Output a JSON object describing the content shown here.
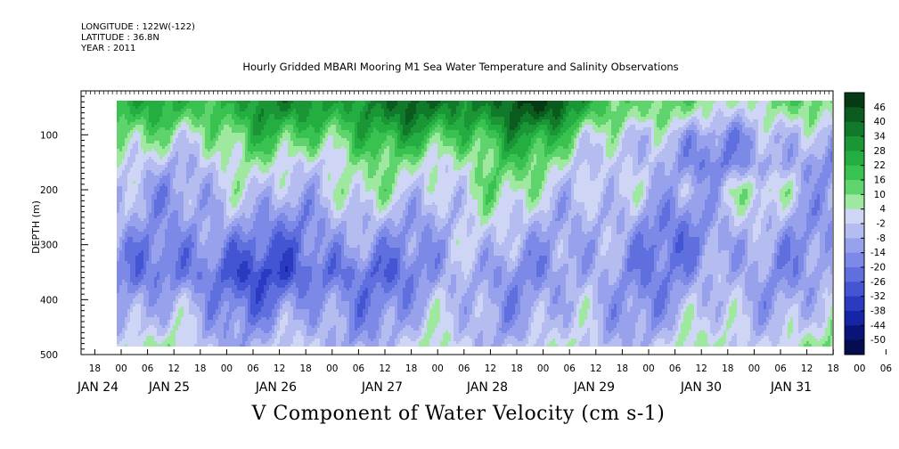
{
  "header": {
    "longitude": "LONGITUDE : 122W(-122)",
    "latitude": "LATITUDE : 36.8N",
    "year": "YEAR : 2011"
  },
  "chart_data": {
    "type": "heatmap",
    "title": "Hourly Gridded MBARI Mooring M1 Sea Water Temperature and Salinity Observations",
    "xlabel": "V Component of Water Velocity (cm s-1)",
    "ylabel": "DEPTH (m)",
    "y_axis": {
      "range": [
        500,
        20
      ],
      "ticks": [
        100,
        200,
        300,
        400,
        500
      ],
      "inverted": true
    },
    "x_axis": {
      "hour_ticks": [
        "18",
        "00",
        "06",
        "12",
        "18",
        "00",
        "06",
        "12",
        "18",
        "00",
        "06",
        "12",
        "18",
        "00",
        "06",
        "12",
        "18",
        "00",
        "06",
        "12",
        "18",
        "00",
        "06",
        "12",
        "18",
        "00",
        "06",
        "12",
        "18",
        "00",
        "06",
        "12"
      ],
      "date_labels": [
        "JAN 24",
        "JAN 25",
        "JAN 26",
        "JAN 27",
        "JAN 28",
        "JAN 29",
        "JAN 30",
        "JAN 31"
      ],
      "data_start": "JAN 24 00",
      "data_end": "JAN 31 17"
    },
    "colorbar": {
      "labels": [
        "46",
        "40",
        "34",
        "28",
        "22",
        "16",
        "10",
        "4",
        "-2",
        "-8",
        "-14",
        "-20",
        "-26",
        "-32",
        "-38",
        "-44",
        "-50"
      ],
      "colors": [
        "#063a14",
        "#0b5a1e",
        "#117a2a",
        "#1a9635",
        "#24ad40",
        "#39c250",
        "#5fd46c",
        "#9ee8a0",
        "#cfd6f5",
        "#b4bcf0",
        "#98a2ec",
        "#7d89e6",
        "#5f6fde",
        "#4455d4",
        "#2a3bc2",
        "#1525a6",
        "#0a1478",
        "#050c50"
      ],
      "range": [
        -50,
        46
      ]
    },
    "value_field_description_pattern": "near-surface positive (green), deeper mostly negative (blue) with vertical streaks",
    "data": {
      "depth_bins_m": [
        30,
        60,
        100,
        150,
        200,
        250,
        300,
        350,
        400,
        450,
        485
      ],
      "sample_days": [
        "JAN 24 00",
        "JAN 25 00",
        "JAN 26 00",
        "JAN 27 00",
        "JAN 28 00",
        "JAN 29 00",
        "JAN 30 00",
        "JAN 31 00"
      ],
      "approx_values": [
        [
          18,
          24,
          30,
          34,
          40,
          8,
          10,
          8
        ],
        [
          14,
          20,
          26,
          30,
          34,
          4,
          2,
          4
        ],
        [
          4,
          10,
          16,
          18,
          20,
          -8,
          -10,
          -4
        ],
        [
          -4,
          0,
          4,
          6,
          10,
          -10,
          -14,
          -8
        ],
        [
          -8,
          -6,
          0,
          2,
          4,
          -8,
          2,
          -10
        ],
        [
          -6,
          -12,
          -10,
          -4,
          -2,
          -14,
          -6,
          -8
        ],
        [
          -10,
          -20,
          -16,
          -8,
          -6,
          -16,
          -12,
          -6
        ],
        [
          -12,
          -26,
          -24,
          -12,
          -10,
          -14,
          -10,
          -8
        ],
        [
          -6,
          -16,
          -16,
          -8,
          -8,
          -10,
          -6,
          -4
        ],
        [
          -2,
          -8,
          -10,
          -4,
          -6,
          -6,
          0,
          -2
        ],
        [
          4,
          -4,
          -6,
          0,
          -2,
          -2,
          4,
          2
        ]
      ]
    }
  }
}
